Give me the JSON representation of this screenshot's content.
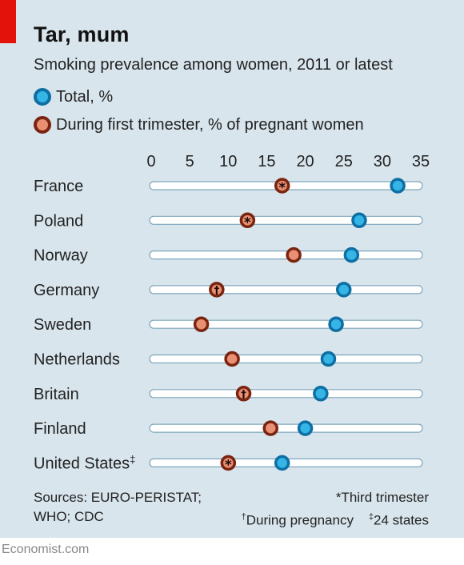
{
  "header": {
    "title": "Tar, mum",
    "subtitle": "Smoking prevalence among women, 2011 or latest"
  },
  "legend": [
    {
      "label": "Total, %",
      "color": "#35b5e5",
      "stroke": "#0d6fa3"
    },
    {
      "label": "During first trimester, % of pregnant women",
      "color": "#e88f74",
      "stroke": "#7a2410"
    }
  ],
  "chart_data": {
    "type": "dot-plot",
    "x_ticks": [
      "0",
      "5",
      "10",
      "15",
      "20",
      "25",
      "30",
      "35"
    ],
    "xlim": [
      0,
      35
    ],
    "categories": [
      "France",
      "Poland",
      "Norway",
      "Germany",
      "Sweden",
      "Netherlands",
      "Britain",
      "Finland",
      "United States"
    ],
    "category_marks": [
      "",
      "",
      "",
      "",
      "",
      "",
      "",
      "",
      "‡"
    ],
    "series": [
      {
        "name": "Total, %",
        "values": [
          32,
          27,
          26,
          25,
          24,
          23,
          22,
          20,
          17
        ]
      },
      {
        "name": "During first trimester, % of pregnant women",
        "values": [
          17,
          12.5,
          18.5,
          8.5,
          6.5,
          10.5,
          12,
          15.5,
          10
        ]
      }
    ],
    "trimester_marks": [
      "*",
      "*",
      "",
      "†",
      "",
      "",
      "†",
      "",
      "*"
    ]
  },
  "footer": {
    "sources_line1": "Sources: EURO-PERISTAT;",
    "sources_line2": "WHO; CDC",
    "note1": "*Third trimester",
    "note2_mark": "†",
    "note2_text": "During pregnancy",
    "note3_mark": "‡",
    "note3_text": "24 states",
    "brand": "Economist.com"
  }
}
